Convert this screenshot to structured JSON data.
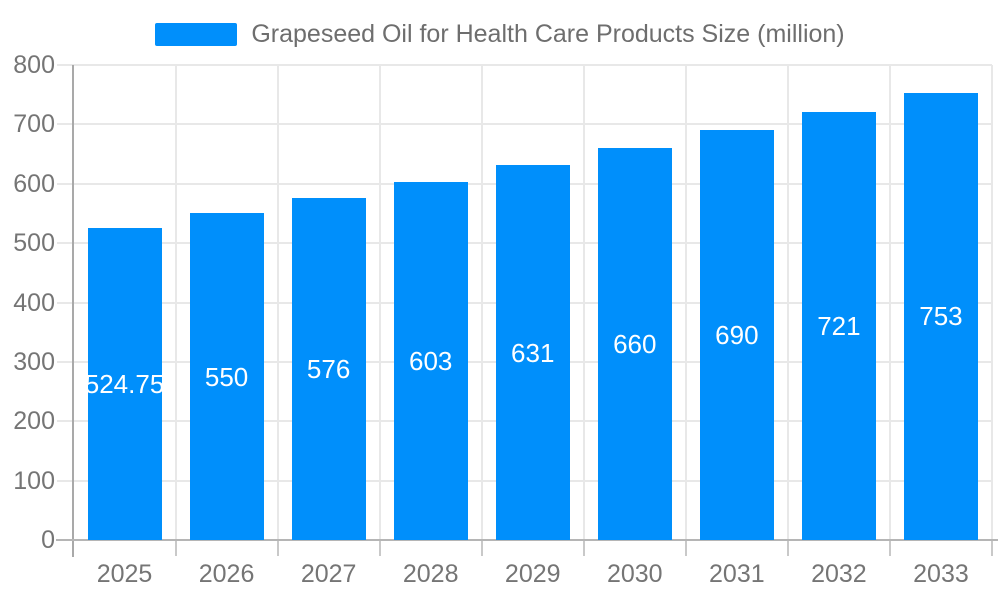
{
  "chart_data": {
    "type": "bar",
    "legend": "Grapeseed Oil for Health Care Products Size (million)",
    "legend_position": "top",
    "categories": [
      "2025",
      "2026",
      "2027",
      "2028",
      "2029",
      "2030",
      "2031",
      "2032",
      "2033"
    ],
    "values": [
      524.75,
      550,
      576,
      603,
      631,
      660,
      690,
      721,
      753
    ],
    "value_labels": [
      "524.75",
      "550",
      "576",
      "603",
      "631",
      "660",
      "690",
      "721",
      "753"
    ],
    "xlabel": "",
    "ylabel": "",
    "ylim": [
      0,
      800
    ],
    "ytick_step": 100,
    "ytick_labels": [
      "0",
      "100",
      "200",
      "300",
      "400",
      "500",
      "600",
      "700",
      "800"
    ],
    "grid": true,
    "colors": {
      "bar": "#008FFB",
      "bar_label_text": "#ffffff",
      "axis_text": "#757575",
      "legend_text": "#6e6e6e",
      "gridline": "#e8e8e8",
      "tick": "#c9c9c9",
      "y_axis_line": "#a9a9a9",
      "x_axis_line": "#b5b5b5",
      "background": "#ffffff"
    }
  }
}
